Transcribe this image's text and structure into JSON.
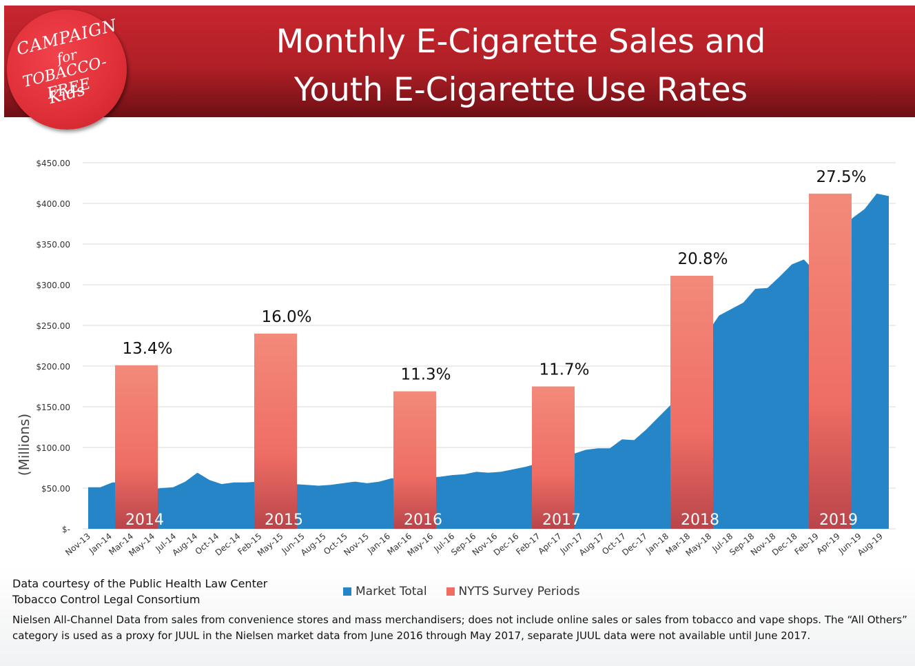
{
  "title": {
    "line1": "Monthly E-Cigarette Sales and",
    "line2": "Youth E-Cigarette Use Rates"
  },
  "logo": {
    "lines": [
      "CAMPAIGN",
      "for",
      "TOBACCO-FREE",
      "Kids"
    ]
  },
  "colors": {
    "header": "#b51f27",
    "market": "#2585c7",
    "survey_top": "#f28a7a",
    "survey_bottom": "#b9454a"
  },
  "chart_data": {
    "type": "area",
    "ylabel": "(Millions)",
    "ylim": [
      0,
      450
    ],
    "grid": true,
    "yticks": [
      "$-",
      "$50.00",
      "$100.00",
      "$150.00",
      "$200.00",
      "$250.00",
      "$300.00",
      "$350.00",
      "$400.00",
      "$450.00"
    ],
    "x_tick_labels": [
      "Nov-13",
      "Jan-14",
      "Mar-14",
      "May-14",
      "Jul-14",
      "Aug-14",
      "Oct-14",
      "Dec-14",
      "Feb-15",
      "May-15",
      "Jun-15",
      "Aug-15",
      "Oct-15",
      "Nov-15",
      "Jan-16",
      "Mar-16",
      "May-16",
      "Jul-16",
      "Sep-16",
      "Nov-16",
      "Dec-16",
      "Feb-17",
      "Apr-17",
      "Jun-17",
      "Aug-17",
      "Oct-17",
      "Dec-17",
      "Jan-18",
      "Mar-18",
      "May-18",
      "Jul-18",
      "Sep-18",
      "Nov-18",
      "Dec-18",
      "Feb-19",
      "Apr-19",
      "Jun-19",
      "Aug-19"
    ],
    "series": [
      {
        "name": "Market Total",
        "values": [
          51,
          51,
          57,
          57,
          45,
          48,
          50,
          51,
          58,
          69,
          60,
          55,
          57,
          57,
          58,
          57,
          56,
          55,
          54,
          53,
          54,
          56,
          58,
          56,
          58,
          62,
          62,
          62,
          63,
          64,
          66,
          67,
          70,
          69,
          70,
          73,
          76,
          80,
          84,
          87,
          92,
          97,
          99,
          99,
          110,
          109,
          122,
          137,
          152,
          170,
          210,
          240,
          262,
          270,
          278,
          295,
          296,
          310,
          325,
          331,
          315,
          310,
          362,
          382,
          393,
          412,
          409
        ]
      },
      {
        "name": "NYTS Survey Periods",
        "bars": [
          {
            "year": "2014",
            "value": 201,
            "label": "13.4%"
          },
          {
            "year": "2015",
            "value": 240,
            "label": "16.0%"
          },
          {
            "year": "2016",
            "value": 169,
            "label": "11.3%"
          },
          {
            "year": "2017",
            "value": 175,
            "label": "11.7%"
          },
          {
            "year": "2018",
            "value": 311,
            "label": "20.8%"
          },
          {
            "year": "2019",
            "value": 412,
            "label": "27.5%"
          }
        ]
      }
    ],
    "legend": [
      "Market Total",
      "NYTS Survey Periods"
    ]
  },
  "footer": {
    "credit_line1": "Data courtesy of the Public Health Law Center",
    "credit_line2": "Tobacco Control Legal Consortium",
    "note": "Nielsen All-Channel Data from sales from convenience stores and mass merchandisers; does not include online sales or sales from tobacco and vape shops. The “All Others” category is used as a proxy for JUUL in the Nielsen market data from June 2016 through May 2017, separate JUUL data were not available until June 2017."
  }
}
